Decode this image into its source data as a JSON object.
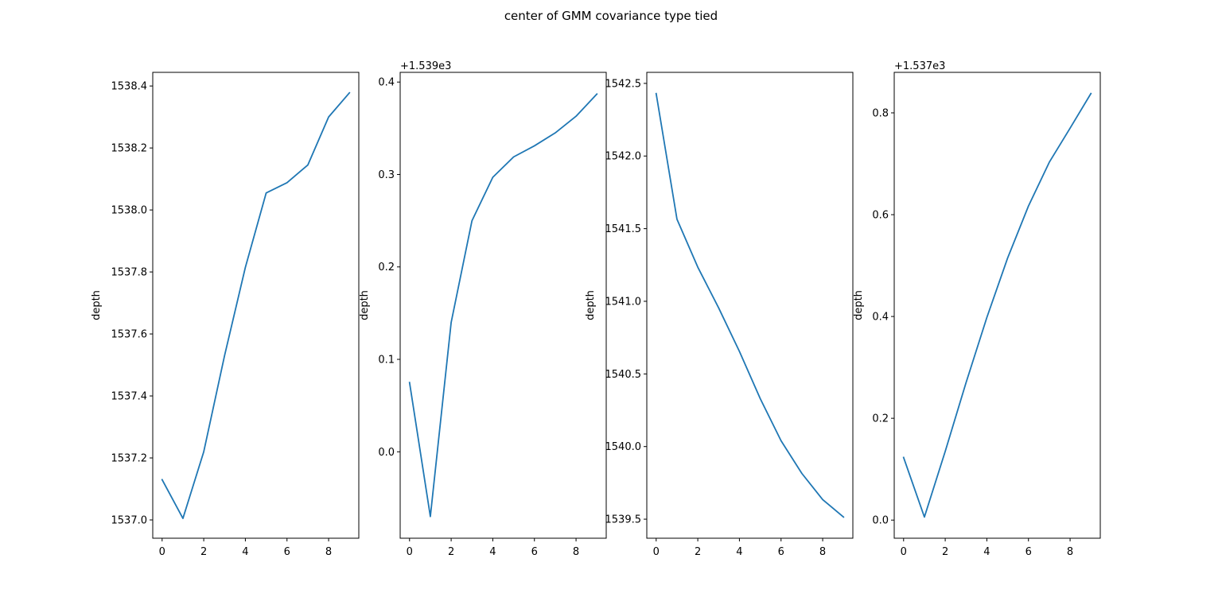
{
  "figure": {
    "title": "center of GMM covariance type tied"
  },
  "chart_data": [
    {
      "type": "line",
      "title": "",
      "xlabel": "",
      "ylabel": "depth",
      "offset_label": "",
      "x": [
        0,
        1,
        2,
        3,
        4,
        5,
        6,
        7,
        8,
        9
      ],
      "series": [
        {
          "values": [
            1537.13,
            1537.005,
            1537.22,
            1537.53,
            1537.815,
            1538.055,
            1538.088,
            1538.145,
            1538.3,
            1538.378
          ]
        }
      ],
      "xlim": [
        -0.45,
        9.45
      ],
      "ylim": [
        1536.941,
        1538.444
      ],
      "xticks": [
        0,
        2,
        4,
        6,
        8
      ],
      "xtick_labels": [
        "0",
        "2",
        "4",
        "6",
        "8"
      ],
      "yticks": [
        1537.0,
        1537.2,
        1537.4,
        1537.6,
        1537.8,
        1538.0,
        1538.2,
        1538.4
      ],
      "ytick_labels": [
        "1537.0",
        "1537.2",
        "1537.4",
        "1537.6",
        "1537.8",
        "1538.0",
        "1538.2",
        "1538.4"
      ],
      "grid": false,
      "color": "#1f77b4"
    },
    {
      "type": "line",
      "title": "",
      "xlabel": "",
      "ylabel": "depth",
      "offset_label": "+1.539e3",
      "x": [
        0,
        1,
        2,
        3,
        4,
        5,
        6,
        7,
        8,
        9
      ],
      "series": [
        {
          "values": [
            0.075,
            -0.07,
            0.14,
            0.25,
            0.297,
            0.319,
            0.331,
            0.345,
            0.363,
            0.387
          ]
        }
      ],
      "xlim": [
        -0.45,
        9.45
      ],
      "ylim": [
        -0.0935,
        0.4105
      ],
      "xticks": [
        0,
        2,
        4,
        6,
        8
      ],
      "xtick_labels": [
        "0",
        "2",
        "4",
        "6",
        "8"
      ],
      "yticks": [
        0.0,
        0.1,
        0.2,
        0.3,
        0.4
      ],
      "ytick_labels": [
        "0.0",
        "0.1",
        "0.2",
        "0.3",
        "0.4"
      ],
      "grid": false,
      "color": "#1f77b4"
    },
    {
      "type": "line",
      "title": "",
      "xlabel": "",
      "ylabel": "depth",
      "offset_label": "",
      "x": [
        0,
        1,
        2,
        3,
        4,
        5,
        6,
        7,
        8,
        9
      ],
      "series": [
        {
          "values": [
            1542.43,
            1541.565,
            1541.235,
            1540.955,
            1540.655,
            1540.33,
            1540.04,
            1539.815,
            1539.635,
            1539.515
          ]
        }
      ],
      "xlim": [
        -0.45,
        9.45
      ],
      "ylim": [
        1539.369,
        1542.576
      ],
      "xticks": [
        0,
        2,
        4,
        6,
        8
      ],
      "xtick_labels": [
        "0",
        "2",
        "4",
        "6",
        "8"
      ],
      "yticks": [
        1539.5,
        1540.0,
        1540.5,
        1541.0,
        1541.5,
        1542.0,
        1542.5
      ],
      "ytick_labels": [
        "1539.5",
        "1540.0",
        "1540.5",
        "1541.0",
        "1541.5",
        "1542.0",
        "1542.5"
      ],
      "grid": false,
      "color": "#1f77b4"
    },
    {
      "type": "line",
      "title": "",
      "xlabel": "",
      "ylabel": "depth",
      "offset_label": "+1.537e3",
      "x": [
        0,
        1,
        2,
        3,
        4,
        5,
        6,
        7,
        8,
        9
      ],
      "series": [
        {
          "values": [
            0.123,
            0.006,
            0.135,
            0.27,
            0.398,
            0.515,
            0.617,
            0.703,
            0.77,
            0.838
          ]
        }
      ],
      "xlim": [
        -0.45,
        9.45
      ],
      "ylim": [
        -0.0356,
        0.8796
      ],
      "xticks": [
        0,
        2,
        4,
        6,
        8
      ],
      "xtick_labels": [
        "0",
        "2",
        "4",
        "6",
        "8"
      ],
      "yticks": [
        0.0,
        0.2,
        0.4,
        0.6,
        0.8
      ],
      "ytick_labels": [
        "0.0",
        "0.2",
        "0.4",
        "0.6",
        "0.8"
      ],
      "grid": false,
      "color": "#1f77b4"
    }
  ]
}
